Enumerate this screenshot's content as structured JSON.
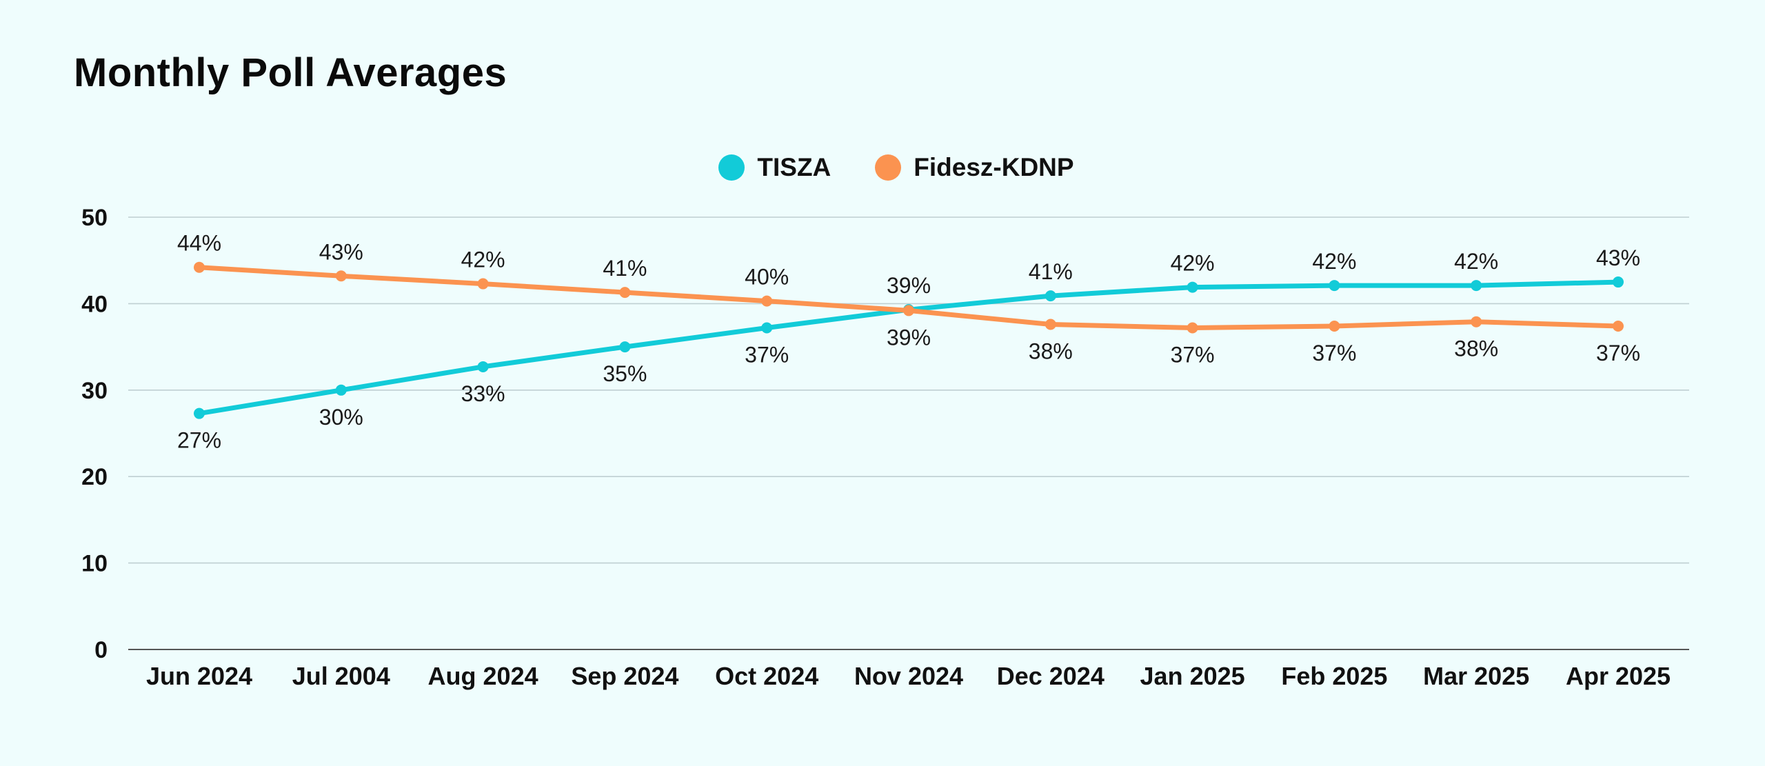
{
  "chart_data": {
    "type": "line",
    "title": "Monthly Poll Averages",
    "categories": [
      "Jun 2024",
      "Jul 2004",
      "Aug 2024",
      "Sep 2024",
      "Oct 2024",
      "Nov 2024",
      "Dec 2024",
      "Jan 2025",
      "Feb 2025",
      "Mar 2025",
      "Apr 2025"
    ],
    "series": [
      {
        "name": "TISZA",
        "color": "#12cbd8",
        "values": [
          27.3,
          30.0,
          32.7,
          35.0,
          37.2,
          39.3,
          40.9,
          41.9,
          42.1,
          42.1,
          42.5
        ],
        "labels": [
          "27%",
          "30%",
          "33%",
          "35%",
          "37%",
          "39%",
          "41%",
          "42%",
          "42%",
          "42%",
          "43%"
        ]
      },
      {
        "name": "Fidesz-KDNP",
        "color": "#fb9350",
        "values": [
          44.2,
          43.2,
          42.3,
          41.3,
          40.3,
          39.2,
          37.6,
          37.2,
          37.4,
          37.9,
          37.4
        ],
        "labels": [
          "44%",
          "43%",
          "42%",
          "41%",
          "40%",
          "39%",
          "38%",
          "37%",
          "37%",
          "38%",
          "37%"
        ]
      }
    ],
    "yticks": [
      "0",
      "10",
      "20",
      "30",
      "40",
      "50"
    ],
    "ylim": [
      0,
      50
    ],
    "grid": true,
    "legend_position": "top-center"
  }
}
